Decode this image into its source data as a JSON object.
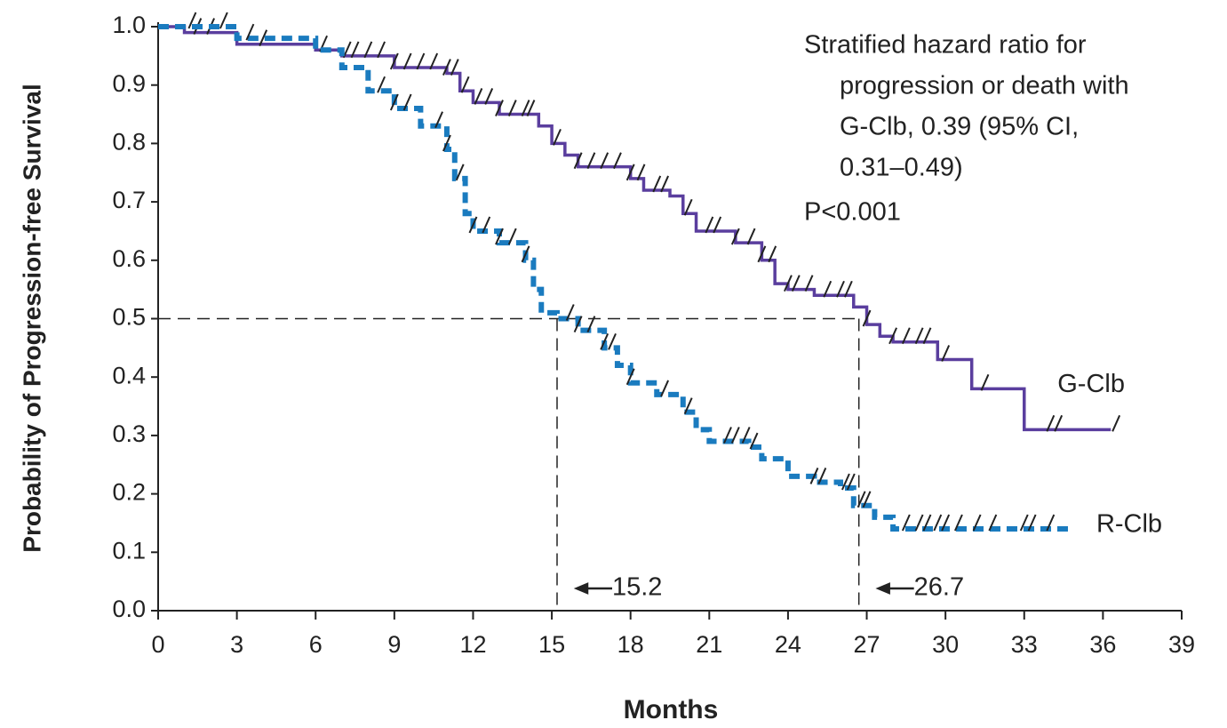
{
  "chart_data": {
    "type": "km",
    "x_label": "Months",
    "y_label": "Probability of Progression-free Survival",
    "xlim": [
      0,
      39
    ],
    "xticks": [
      0,
      3,
      6,
      9,
      12,
      15,
      18,
      21,
      24,
      27,
      30,
      33,
      36,
      39
    ],
    "ylim": [
      0,
      1
    ],
    "yticks": [
      {
        "value": 0,
        "label": "0.0"
      },
      0.1,
      0.2,
      0.3,
      0.4,
      0.5,
      0.6,
      0.7,
      0.8,
      0.9,
      {
        "value": 1,
        "label": "1.0"
      }
    ],
    "step": true,
    "series": [
      {
        "name": "G-Clb",
        "color": "#5a3e9e",
        "dashed": false,
        "x": [
          0,
          1,
          3,
          6,
          7,
          9,
          11,
          11.5,
          12,
          13,
          14.5,
          15,
          15.5,
          16,
          17,
          18,
          18.5,
          19.5,
          20,
          20.5,
          22,
          23,
          23.5,
          24,
          25,
          26.5,
          27,
          27.5,
          28,
          29.7,
          31,
          33,
          36.3
        ],
        "values": [
          1.0,
          0.99,
          0.97,
          0.96,
          0.95,
          0.93,
          0.92,
          0.89,
          0.87,
          0.85,
          0.83,
          0.8,
          0.78,
          0.76,
          0.76,
          0.74,
          0.72,
          0.71,
          0.68,
          0.65,
          0.63,
          0.6,
          0.56,
          0.55,
          0.54,
          0.52,
          0.49,
          0.47,
          0.46,
          0.43,
          0.38,
          0.31,
          0.31
        ],
        "censored": [
          1.5,
          2,
          4,
          6.3,
          7.2,
          7.5,
          8,
          8.5,
          9,
          9.5,
          10,
          10.5,
          11,
          11.3,
          11.7,
          12.2,
          12.6,
          13,
          13.5,
          14,
          14.2,
          15.2,
          16,
          16.5,
          17,
          17.5,
          18,
          18.4,
          19,
          19.3,
          20.2,
          21,
          21.3,
          22,
          22.6,
          23,
          23.4,
          24,
          24.3,
          24.8,
          25.5,
          26,
          26.3,
          27,
          28,
          28.5,
          29,
          29.3,
          30,
          31.5,
          34,
          34.3,
          36.5
        ]
      },
      {
        "name": "R-Clb",
        "color": "#1a7bbf",
        "dashed": true,
        "x": [
          0,
          3,
          6,
          7,
          8,
          9,
          10,
          11,
          11.3,
          11.7,
          12,
          13,
          14,
          14.3,
          14.6,
          15.2,
          16,
          17,
          17.5,
          18,
          19,
          20,
          20.5,
          21,
          22.5,
          23,
          24,
          25,
          26,
          26.5,
          27.3,
          28,
          34.8
        ],
        "values": [
          1.0,
          0.98,
          0.96,
          0.93,
          0.89,
          0.86,
          0.83,
          0.79,
          0.74,
          0.68,
          0.65,
          0.63,
          0.6,
          0.55,
          0.51,
          0.5,
          0.48,
          0.45,
          0.42,
          0.39,
          0.37,
          0.34,
          0.31,
          0.29,
          0.28,
          0.26,
          0.23,
          0.22,
          0.21,
          0.18,
          0.16,
          0.14,
          0.14
        ],
        "censored": [
          1.3,
          2.5,
          3.5,
          8.5,
          9,
          9.5,
          10.7,
          11,
          11.5,
          12,
          12.5,
          13,
          13.5,
          14,
          15.7,
          16,
          16.5,
          17,
          17.3,
          18,
          19.3,
          20.2,
          21.7,
          22,
          22.4,
          22.7,
          25,
          25.3,
          26.2,
          26.4,
          26.8,
          27,
          28.5,
          29,
          29.3,
          29.7,
          30,
          30.5,
          31.2,
          31.8,
          33,
          33.3,
          34
        ]
      }
    ],
    "reference_y": 0.5,
    "medians": [
      15.2,
      26.7
    ],
    "annotation_lines": [
      "Stratified hazard ratio for",
      "progression or death with",
      "G-Clb, 0.39 (95% CI,",
      "0.31–0.49)"
    ],
    "p_value": "P<0.001"
  }
}
